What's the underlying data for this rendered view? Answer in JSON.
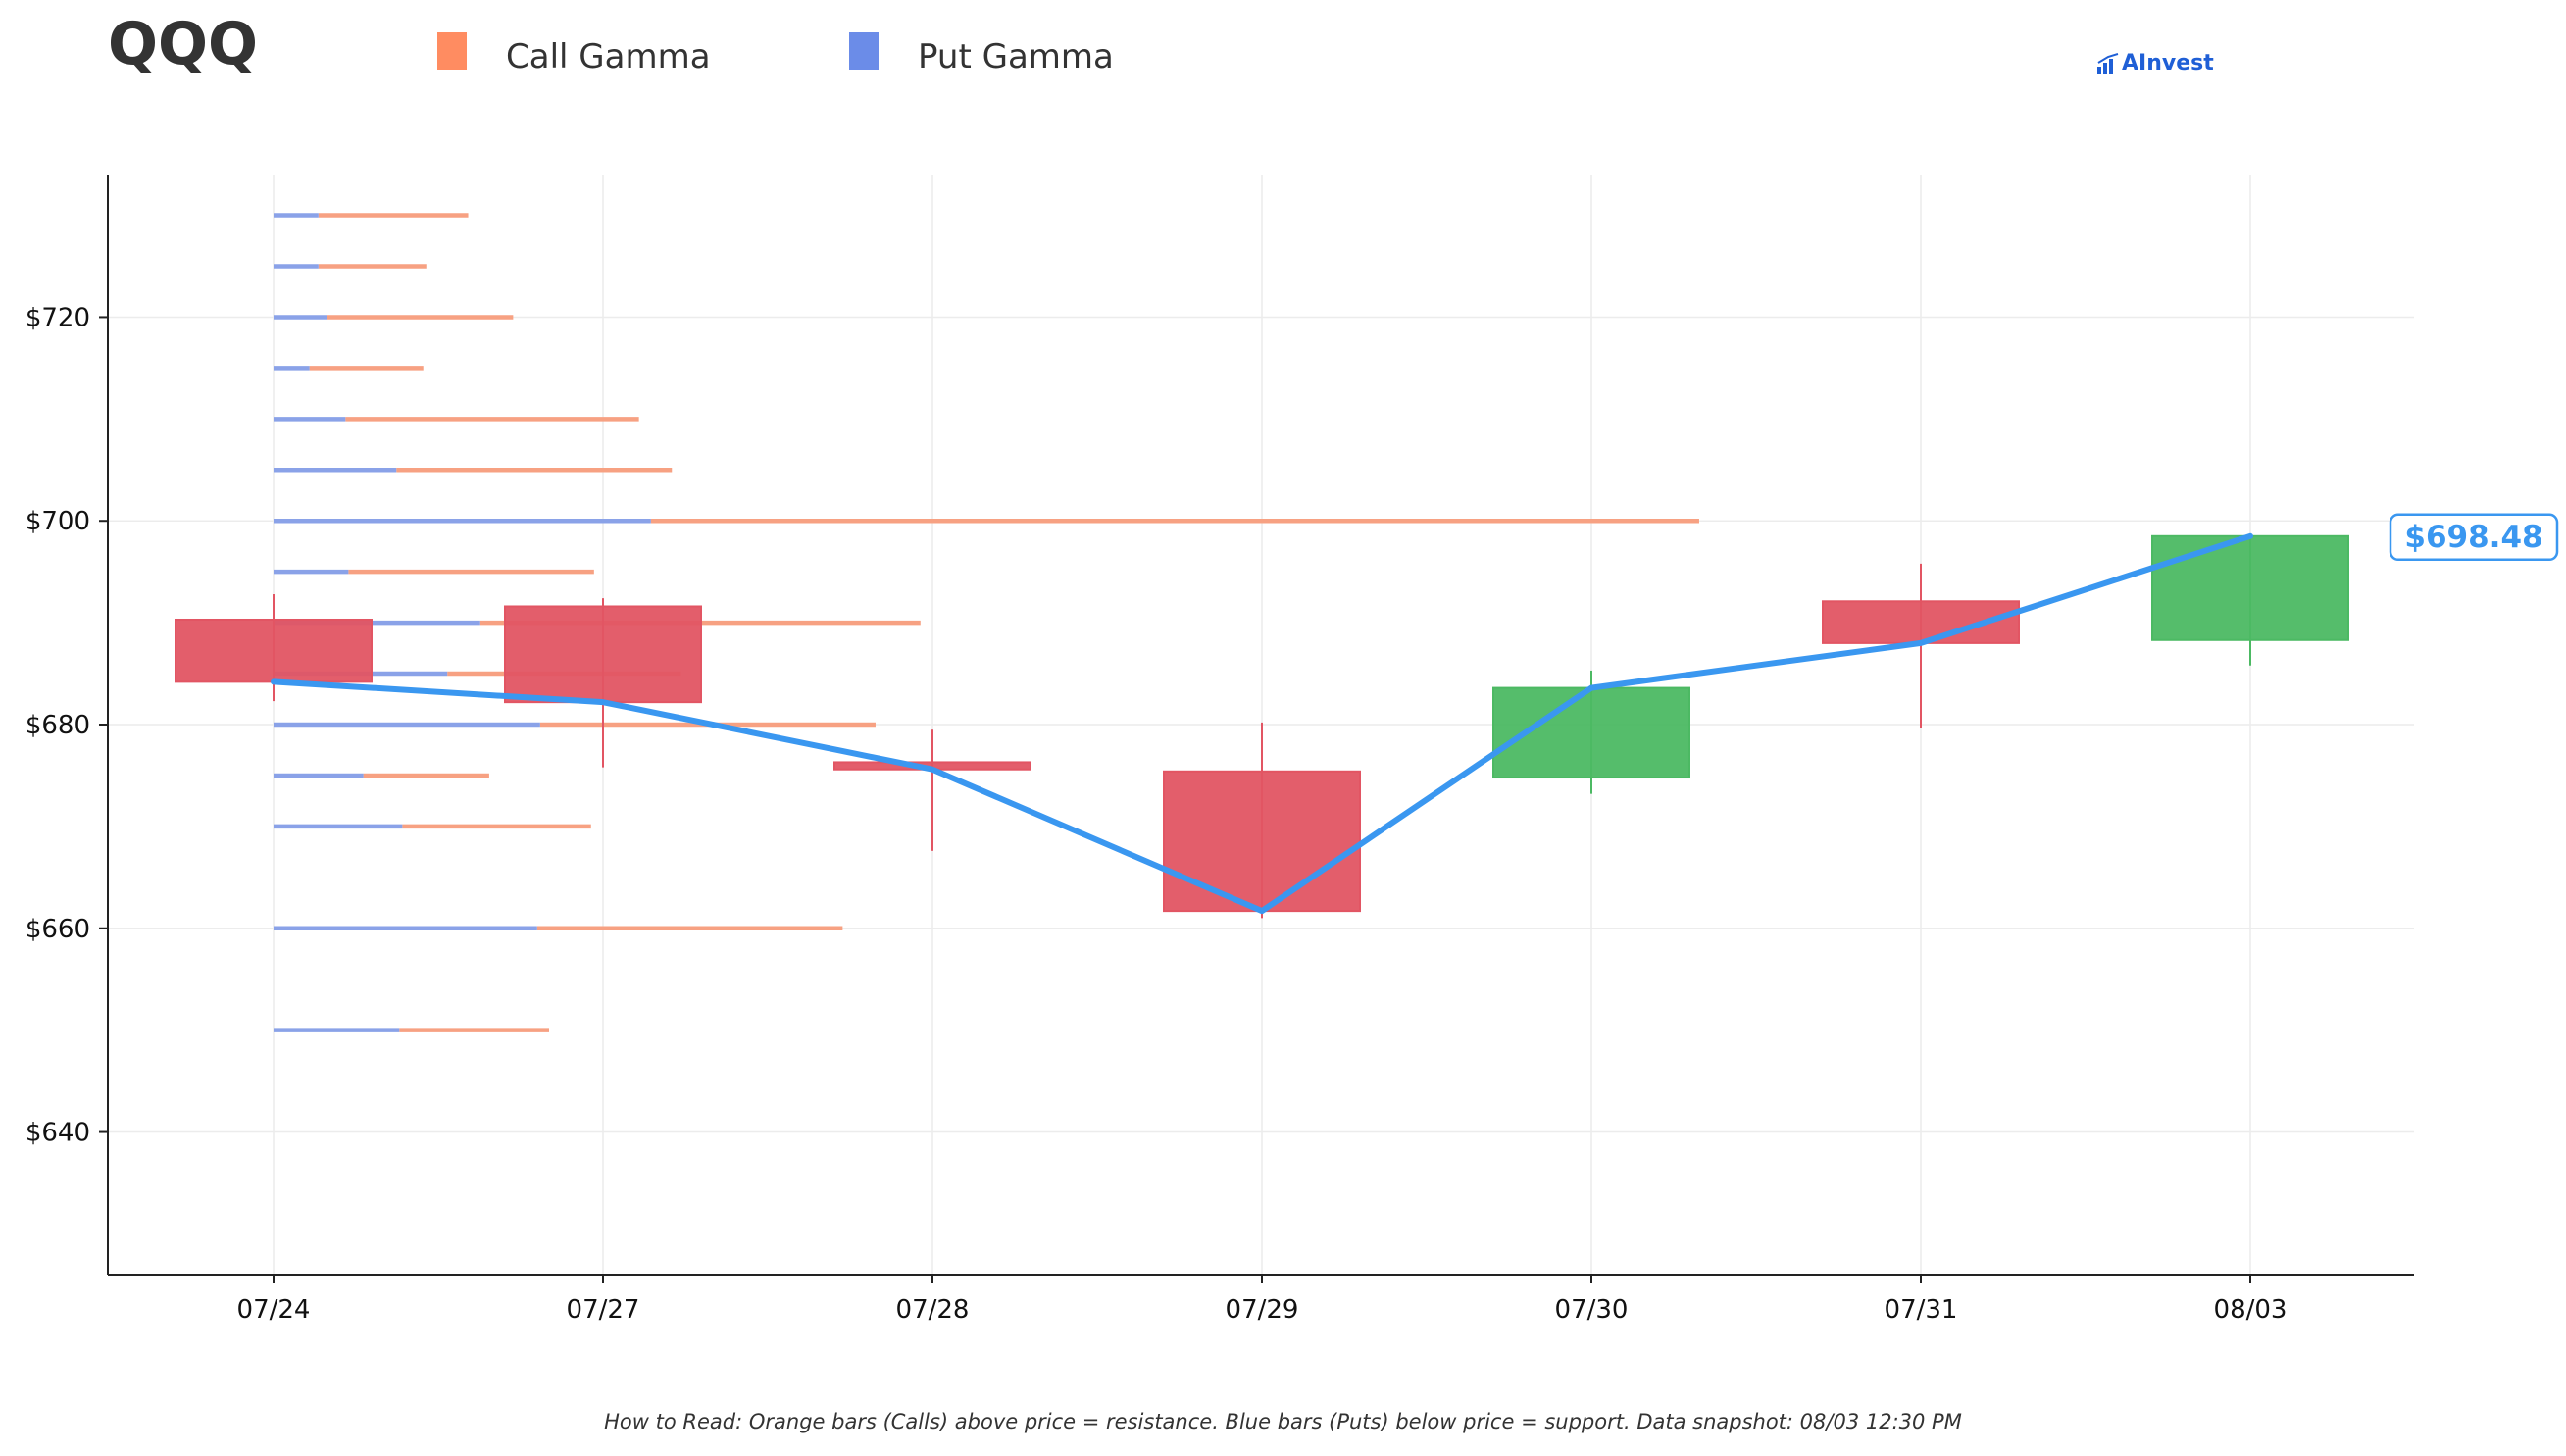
{
  "header": {
    "ticker": "QQQ",
    "brand": "AInvest"
  },
  "legend": [
    {
      "label": "Call Gamma",
      "color": "#ff8c61"
    },
    {
      "label": "Put Gamma",
      "color": "#6b8ce8"
    }
  ],
  "footnote": "How to Read: Orange bars (Calls) above price = resistance. Blue bars (Puts) below price = support. Data snapshot: 08/03 12:30 PM",
  "chart_data": {
    "type": "candlestick",
    "categories": [
      "07/24",
      "07/27",
      "07/28",
      "07/29",
      "07/30",
      "07/31",
      "08/03"
    ],
    "ylim": [
      626,
      734
    ],
    "yticks": [
      640,
      660,
      680,
      700,
      720
    ],
    "ytick_labels": [
      "$640",
      "$660",
      "$680",
      "$700",
      "$720"
    ],
    "grid": true,
    "candles": [
      {
        "date": "07/24",
        "open": 690.3,
        "high": 692.8,
        "low": 682.3,
        "close": 684.2
      },
      {
        "date": "07/27",
        "open": 691.6,
        "high": 692.4,
        "low": 675.8,
        "close": 682.2
      },
      {
        "date": "07/28",
        "open": 676.3,
        "high": 679.5,
        "low": 667.6,
        "close": 675.6
      },
      {
        "date": "07/29",
        "open": 675.4,
        "high": 680.2,
        "low": 661.0,
        "close": 661.7
      },
      {
        "date": "07/30",
        "open": 674.8,
        "high": 685.3,
        "low": 673.2,
        "close": 683.6
      },
      {
        "date": "07/31",
        "open": 692.1,
        "high": 695.8,
        "low": 679.7,
        "close": 688.0
      },
      {
        "date": "08/03",
        "open": 688.3,
        "high": 698.5,
        "low": 685.8,
        "close": 698.5
      }
    ],
    "close_line": [
      684.2,
      682.2,
      675.6,
      661.7,
      683.6,
      688.0,
      698.5
    ],
    "last_price_label": "$698.48",
    "gamma_bars": [
      {
        "strike": 730,
        "put": 0.15,
        "call": 0.5
      },
      {
        "strike": 725,
        "put": 0.15,
        "call": 0.36
      },
      {
        "strike": 720,
        "put": 0.18,
        "call": 0.62
      },
      {
        "strike": 715,
        "put": 0.12,
        "call": 0.38
      },
      {
        "strike": 710,
        "put": 0.24,
        "call": 0.98
      },
      {
        "strike": 705,
        "put": 0.41,
        "call": 0.92
      },
      {
        "strike": 700,
        "put": 1.26,
        "call": 3.5
      },
      {
        "strike": 695,
        "put": 0.25,
        "call": 0.82
      },
      {
        "strike": 690,
        "put": 0.69,
        "call": 1.47
      },
      {
        "strike": 685,
        "put": 0.58,
        "call": 0.78
      },
      {
        "strike": 680,
        "put": 0.89,
        "call": 1.12
      },
      {
        "strike": 675,
        "put": 0.3,
        "call": 0.42
      },
      {
        "strike": 670,
        "put": 0.43,
        "call": 0.63
      },
      {
        "strike": 660,
        "put": 0.88,
        "call": 1.02
      },
      {
        "strike": 650,
        "put": 0.42,
        "call": 0.5
      }
    ],
    "colors": {
      "up": "#4cb963",
      "down": "#e25563",
      "line": "#3a97f0",
      "call": "#f7a182",
      "put": "#8aa2e8",
      "axis": "#222222",
      "grid": "#ececec"
    }
  }
}
